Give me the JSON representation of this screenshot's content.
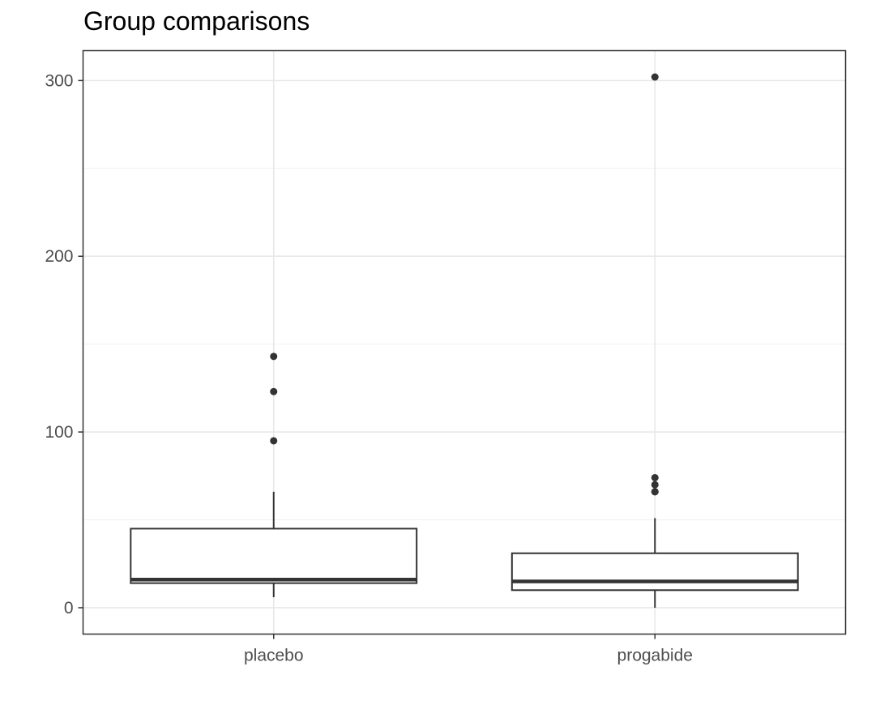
{
  "chart_data": {
    "type": "box",
    "title": "Group comparisons",
    "xlabel": "",
    "ylabel": "",
    "categories": [
      "placebo",
      "progabide"
    ],
    "y_ticks": [
      0,
      100,
      200,
      300
    ],
    "ylim": [
      -15,
      317
    ],
    "grid": true,
    "boxes": [
      {
        "category": "placebo",
        "whisker_low": 6,
        "q1": 14,
        "median": 16,
        "q3": 45,
        "whisker_high": 66,
        "outliers": [
          95,
          123,
          143
        ]
      },
      {
        "category": "progabide",
        "whisker_low": 0,
        "q1": 10,
        "median": 15,
        "q3": 31,
        "whisker_high": 51,
        "outliers": [
          66,
          66,
          70,
          74,
          302
        ]
      }
    ]
  }
}
